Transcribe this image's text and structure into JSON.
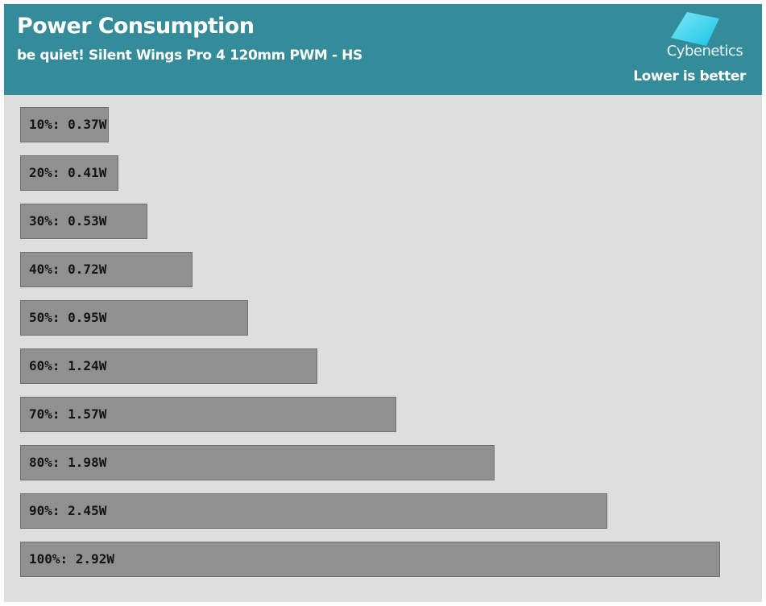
{
  "header": {
    "title": "Power Consumption",
    "subtitle": "be quiet! Silent Wings Pro 4 120mm PWM - HS",
    "logo_text": "Cybenetics",
    "note": "Lower is better"
  },
  "colors": {
    "header_bg": "#348c9b",
    "plot_bg": "#dedede",
    "bar_fill": "#909090",
    "logo_accent": "#3dd6ef"
  },
  "chart_data": {
    "type": "bar",
    "orientation": "horizontal",
    "title": "Power Consumption",
    "subtitle": "be quiet! Silent Wings Pro 4 120mm PWM - HS",
    "categories": [
      "10%",
      "20%",
      "30%",
      "40%",
      "50%",
      "60%",
      "70%",
      "80%",
      "90%",
      "100%"
    ],
    "values": [
      0.37,
      0.41,
      0.53,
      0.72,
      0.95,
      1.24,
      1.57,
      1.98,
      2.45,
      2.92
    ],
    "unit": "W",
    "labels": [
      "10%: 0.37W",
      "20%: 0.41W",
      "30%: 0.53W",
      "40%: 0.72W",
      "50%: 0.95W",
      "60%: 1.24W",
      "70%: 1.57W",
      "80%: 1.98W",
      "90%: 2.45W",
      "100%: 2.92W"
    ],
    "xlim": [
      0.0,
      2.92
    ],
    "grid": false,
    "legend": "none"
  }
}
